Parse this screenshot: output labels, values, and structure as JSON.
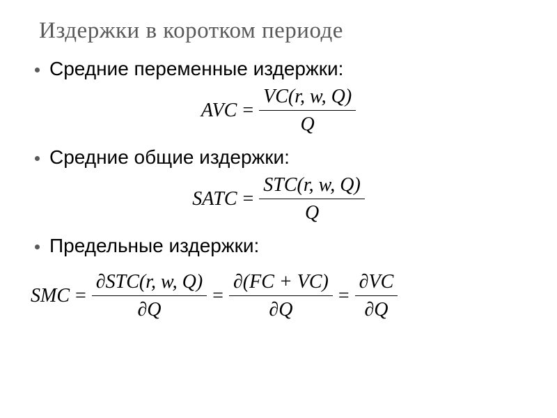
{
  "slide": {
    "title": "Издержки в коротком периоде",
    "title_color": "#595959",
    "title_fontsize": 33,
    "background": "#ffffff"
  },
  "bullets": [
    {
      "text": "Средние переменные издержки:"
    },
    {
      "text": "Средние общие издержки:"
    },
    {
      "text": "Предельные издержки:"
    }
  ],
  "formulas": {
    "avc": {
      "lhs": "AVC",
      "num": "VC(r, w, Q)",
      "den": "Q"
    },
    "satc": {
      "lhs": "SATC",
      "num": "STC(r, w, Q)",
      "den": "Q"
    },
    "smc": {
      "lhs": "SMC",
      "t1_num": "∂STC(r, w, Q)",
      "t1_den": "∂Q",
      "t2_num": "∂(FC + VC)",
      "t2_den": "∂Q",
      "t3_num": "∂VC",
      "t3_den": "∂Q"
    }
  },
  "style": {
    "bullet_color": "#595959",
    "bullet_fontsize": 28,
    "formula_fontsize": 28,
    "text_color": "#000000"
  }
}
